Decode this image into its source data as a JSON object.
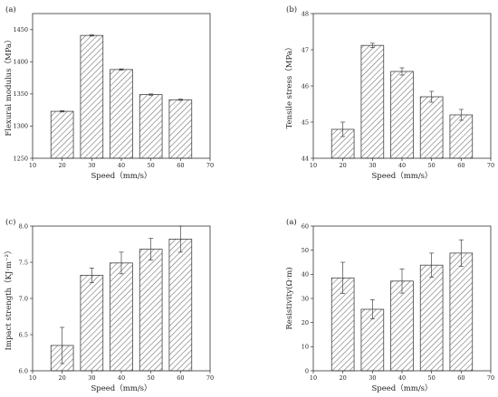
{
  "chart_data": [
    {
      "type": "bar",
      "panel_label": "(a)",
      "xlabel": "Speed（mm/s）",
      "ylabel": "Flexural modulus（MPa）",
      "xlim": [
        10,
        70
      ],
      "xticks": [
        10,
        20,
        30,
        40,
        50,
        60,
        70
      ],
      "ylim": [
        1250,
        1475
      ],
      "yticks": [
        1250,
        1300,
        1350,
        1400,
        1450
      ],
      "x": [
        20,
        30,
        40,
        50,
        60
      ],
      "values": [
        1323,
        1441,
        1388,
        1349,
        1341
      ],
      "errors": [
        1,
        1,
        1,
        1,
        1
      ],
      "bar_fill": "#ffffff",
      "hatch_color": "#666666",
      "bar_edge": "#444444"
    },
    {
      "type": "bar",
      "panel_label": "(b)",
      "xlabel": "Speed（mm/s）",
      "ylabel": "Tensile stress（MPa）",
      "xlim": [
        10,
        70
      ],
      "xticks": [
        10,
        20,
        30,
        40,
        50,
        60,
        70
      ],
      "ylim": [
        44,
        48
      ],
      "yticks": [
        44,
        45,
        46,
        47,
        48
      ],
      "x": [
        20,
        30,
        40,
        50,
        60
      ],
      "values": [
        44.8,
        47.12,
        46.4,
        45.7,
        45.2
      ],
      "errors": [
        0.2,
        0.06,
        0.1,
        0.15,
        0.15
      ],
      "bar_fill": "#ffffff",
      "hatch_color": "#666666",
      "bar_edge": "#444444"
    },
    {
      "type": "bar",
      "panel_label": "(c)",
      "xlabel": "Speed（mm/s）",
      "ylabel": "Impact strength（KJ·m⁻²）",
      "xlim": [
        10,
        70
      ],
      "xticks": [
        10,
        20,
        30,
        40,
        50,
        60,
        70
      ],
      "ylim": [
        6.0,
        8.0
      ],
      "yticks": [
        6.0,
        6.5,
        7.0,
        7.5,
        8.0
      ],
      "ytick_labels": [
        "6.0",
        "6.5",
        "7.0",
        "7.5",
        "8.0"
      ],
      "x": [
        20,
        30,
        40,
        50,
        60
      ],
      "values": [
        6.35,
        7.32,
        7.49,
        7.68,
        7.82
      ],
      "errors": [
        0.25,
        0.1,
        0.15,
        0.15,
        0.18
      ],
      "bar_fill": "#ffffff",
      "hatch_color": "#666666",
      "bar_edge": "#444444"
    },
    {
      "type": "bar",
      "panel_label": "(a)",
      "xlabel": "Speed（mm/s）",
      "ylabel": "Resistivity(Ω·m)",
      "xlim": [
        10,
        70
      ],
      "xticks": [
        10,
        20,
        30,
        40,
        50,
        60,
        70
      ],
      "ylim": [
        0,
        60
      ],
      "yticks": [
        0,
        10,
        20,
        30,
        40,
        50,
        60
      ],
      "x": [
        20,
        30,
        40,
        50,
        60
      ],
      "values": [
        38.5,
        25.5,
        37.2,
        43.8,
        48.8
      ],
      "errors": [
        6.5,
        4.0,
        5.0,
        5.0,
        5.5
      ],
      "bar_fill": "#ffffff",
      "hatch_color": "#666666",
      "bar_edge": "#444444"
    }
  ]
}
